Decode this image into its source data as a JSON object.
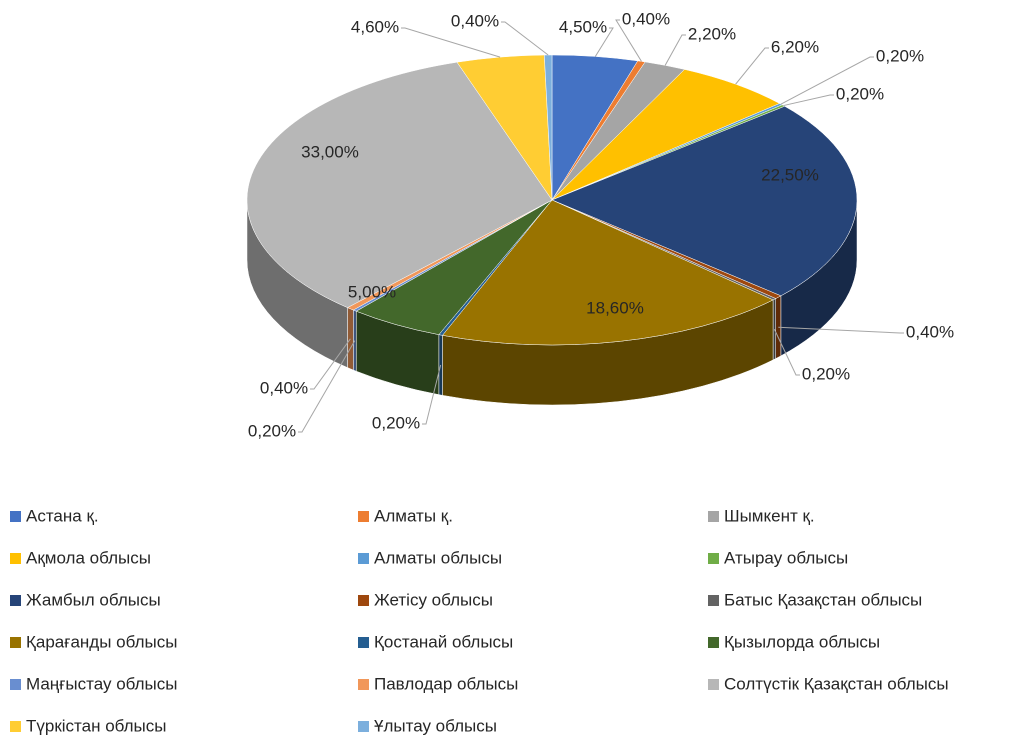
{
  "chart_data": {
    "type": "pie3d",
    "categories": [
      "Астана қ.",
      "Алматы қ.",
      "Шымкент қ.",
      "Ақмола облысы",
      "Алматы облысы",
      "Атырау облысы",
      "Жамбыл облысы",
      "Жетісу облысы",
      "Батыс Қазақстан облысы",
      "Қарағанды облысы",
      "Қостанай облысы",
      "Қызылорда облысы",
      "Маңғыстау облысы",
      "Павлодар облысы",
      "Солтүстік Қазақстан облысы",
      "Түркістан облысы",
      "Ұлытау облысы"
    ],
    "values": [
      4.5,
      0.4,
      2.2,
      6.2,
      0.2,
      0.2,
      22.5,
      0.4,
      0.2,
      18.6,
      0.2,
      5.0,
      0.2,
      0.4,
      33.0,
      4.6,
      0.4
    ],
    "value_labels": [
      "4,50%",
      "0,40%",
      "2,20%",
      "6,20%",
      "0,20%",
      "0,20%",
      "22,50%",
      "0,40%",
      "0,20%",
      "18,60%",
      "0,20%",
      "5,00%",
      "0,20%",
      "0,40%",
      "33,00%",
      "4,60%",
      "0,40%"
    ],
    "colors": [
      "#4472c4",
      "#ed7d31",
      "#a5a5a5",
      "#ffc000",
      "#5b9bd5",
      "#70ad47",
      "#264478",
      "#9e480e",
      "#636363",
      "#997300",
      "#255e91",
      "#43682b",
      "#698ed0",
      "#f1975a",
      "#b7b7b7",
      "#ffcd33",
      "#7cafdd"
    ],
    "legend": "bottom"
  }
}
